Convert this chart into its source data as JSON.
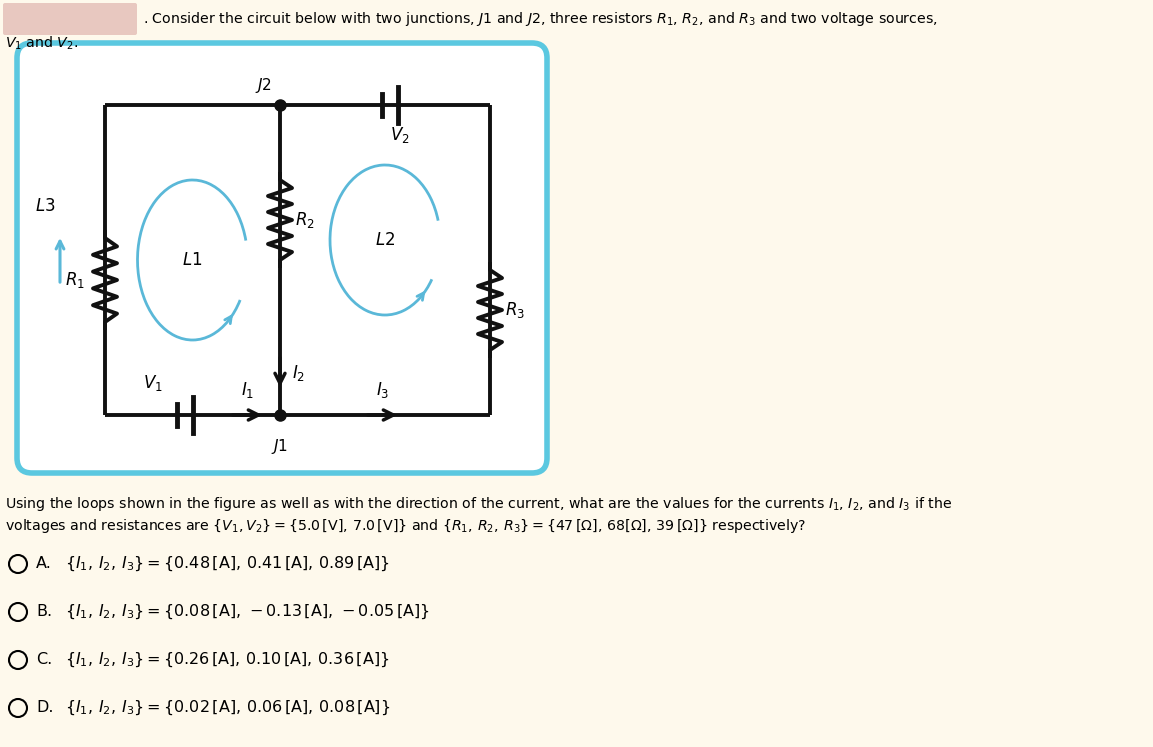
{
  "bg_color": "#fef9ec",
  "circuit_box_color": "#5bc8e0",
  "wire_color": "#111111",
  "loop_color": "#5ab8d8",
  "label_color": "#111111",
  "rect_color": "#e8c8c0",
  "header1": ". Consider the circuit below with two junctions, $J1$ and $J2$, three resistors $R_1$, $R_2$, and $R_3$ and two voltage sources,",
  "header2": "$V_1$ and $V_2$.",
  "q_line1": "Using the loops shown in the figure as well as with the direction of the current, what are the values for the currents $I_1$, $I_2$, and $I_3$ if the",
  "q_line2": "voltages and resistances are $\\{V_1, V_2\\} = \\{5.0\\,[\\mathrm{V}],\\,7.0\\,[\\mathrm{V}]\\}$ and $\\{R_1,\\,R_2,\\,R_3\\} = \\{47\\,[\\Omega],\\,68[\\Omega],\\,39\\,[\\Omega]\\}$ respectively?",
  "opt_A": "$\\{I_1,\\,I_2,\\,I_3\\} = \\{0.48\\,[\\mathrm{A}],\\,0.41\\,[\\mathrm{A}],\\,0.89\\,[\\mathrm{A}]\\}$",
  "opt_B": "$\\{I_1,\\,I_2,\\,I_3\\} = \\{0.08\\,[\\mathrm{A}],\\,-0.13\\,[\\mathrm{A}],\\,-0.05\\,[\\mathrm{A}]\\}$",
  "opt_C": "$\\{I_1,\\,I_2,\\,I_3\\} = \\{0.26\\,[\\mathrm{A}],\\,0.10\\,[\\mathrm{A}],\\,0.36\\,[\\mathrm{A}]\\}$",
  "opt_D": "$\\{I_1,\\,I_2,\\,I_3\\} = \\{0.02\\,[\\mathrm{A}],\\,0.06\\,[\\mathrm{A}],\\,0.08\\,[\\mathrm{A}]\\}$"
}
